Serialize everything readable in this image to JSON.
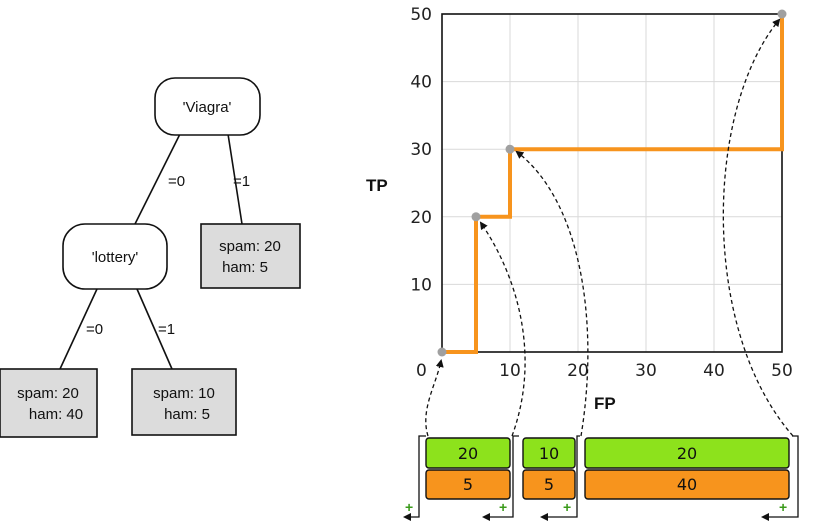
{
  "tree": {
    "root": {
      "label": "'Viagra'"
    },
    "left_child": {
      "label": "'lottery'"
    },
    "edges": {
      "root_left": "=0",
      "root_right": "=1",
      "lottery_left": "=0",
      "lottery_right": "=1"
    },
    "leaves": {
      "viagra_1": {
        "line1": "spam: 20",
        "line2": "ham: 5"
      },
      "lottery_0": {
        "line1": "spam: 20",
        "line2": "ham: 40"
      },
      "lottery_1": {
        "line1": "spam: 10",
        "line2": "ham: 5"
      }
    }
  },
  "chart_data": {
    "type": "line",
    "xlabel": "FP",
    "ylabel": "TP",
    "xlim": [
      0,
      50
    ],
    "ylim": [
      0,
      50
    ],
    "xticks": [
      "0",
      "10",
      "20",
      "30",
      "40",
      "50"
    ],
    "yticks": [
      "10",
      "20",
      "30",
      "40",
      "50"
    ],
    "grid": true,
    "series": [
      {
        "points": [
          [
            0,
            0
          ],
          [
            5,
            0
          ],
          [
            5,
            20
          ],
          [
            10,
            20
          ],
          [
            10,
            30
          ],
          [
            50,
            30
          ],
          [
            50,
            50
          ]
        ]
      }
    ],
    "markers": [
      [
        0,
        0
      ],
      [
        5,
        20
      ],
      [
        10,
        30
      ],
      [
        50,
        50
      ]
    ]
  },
  "segments": [
    {
      "top": "20",
      "bottom": "5"
    },
    {
      "top": "10",
      "bottom": "5"
    },
    {
      "top": "20",
      "bottom": "40"
    }
  ],
  "plus_sign": "+",
  "colors": {
    "curve": "#f7941d",
    "marker": "#a0a0a0",
    "segment_top": "#8de21c",
    "segment_bottom": "#f7941d",
    "leaf_fill": "#dcdcdc",
    "grid": "#d9d9d9",
    "plus": "#3a9a1a"
  }
}
